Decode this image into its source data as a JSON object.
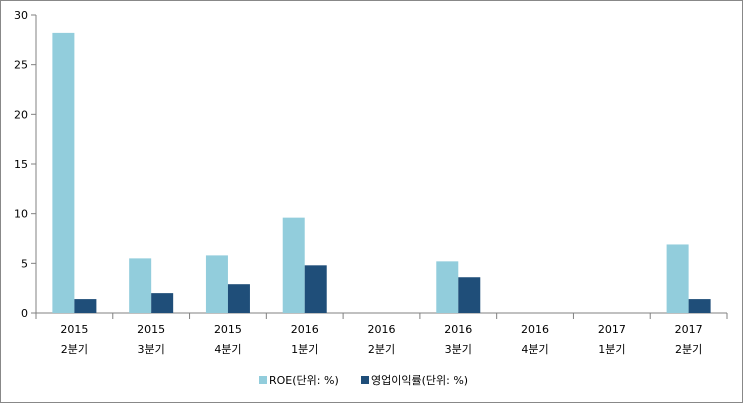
{
  "chart_data": {
    "type": "bar",
    "categories": [
      [
        "2015",
        "2분기"
      ],
      [
        "2015",
        "3분기"
      ],
      [
        "2015",
        "4분기"
      ],
      [
        "2016",
        "1분기"
      ],
      [
        "2016",
        "2분기"
      ],
      [
        "2016",
        "3분기"
      ],
      [
        "2016",
        "4분기"
      ],
      [
        "2017",
        "1분기"
      ],
      [
        "2017",
        "2분기"
      ]
    ],
    "series": [
      {
        "name": "ROE(단위: %)",
        "color": "#92cddc",
        "values": [
          28.2,
          5.5,
          5.8,
          9.6,
          null,
          5.2,
          null,
          null,
          6.9
        ]
      },
      {
        "name": "영업이익률(단위: %)",
        "color": "#1f4e79",
        "values": [
          1.4,
          2.0,
          2.9,
          4.8,
          null,
          3.6,
          null,
          null,
          1.4
        ]
      }
    ],
    "ylim": [
      0,
      30
    ],
    "yticks": [
      0,
      5,
      10,
      15,
      20,
      25,
      30
    ],
    "grid": false,
    "legend_position": "bottom"
  }
}
